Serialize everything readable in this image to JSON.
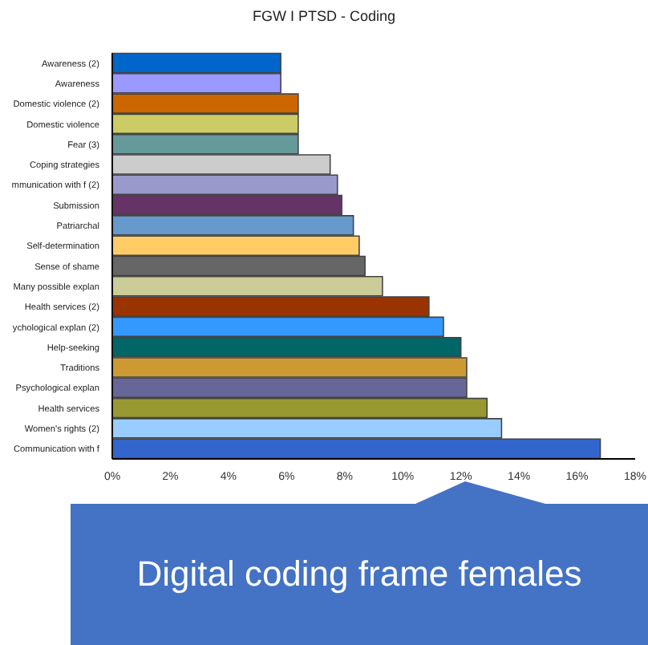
{
  "chart_data": {
    "type": "bar",
    "orientation": "horizontal",
    "title": "FGW I PTSD - Coding",
    "categories": [
      "Awareness (2)",
      "Awareness",
      "Domestic violence (2)",
      "Domestic violence",
      "Fear (3)",
      "Coping strategies",
      "mmunication with f (2)",
      "Submission",
      "Patriarchal",
      "Self-determination",
      "Sense of shame",
      "Many possible explan",
      "Health services (2)",
      "ychological explan (2)",
      "Help-seeking",
      "Traditions",
      "Psychological explan",
      "Health services",
      "Women's rights (2)",
      "Communication with f"
    ],
    "values": [
      5.8,
      5.8,
      6.4,
      6.4,
      6.4,
      7.5,
      7.75,
      7.9,
      8.3,
      8.5,
      8.7,
      9.3,
      10.9,
      11.4,
      12.0,
      12.2,
      12.2,
      12.9,
      13.4,
      16.8
    ],
    "colors": [
      "#0066cc",
      "#9999ff",
      "#cc6600",
      "#cccc66",
      "#669999",
      "#cccccc",
      "#9999cc",
      "#663366",
      "#6699cc",
      "#ffcc66",
      "#666666",
      "#cccc99",
      "#993300",
      "#3399ff",
      "#006666",
      "#cc9933",
      "#666699",
      "#999933",
      "#99ccff",
      "#3366cc"
    ],
    "xlim": [
      0,
      18
    ],
    "xticks": [
      {
        "value": 0,
        "label": "0%"
      },
      {
        "value": 2,
        "label": "2%"
      },
      {
        "value": 4,
        "label": "4%"
      },
      {
        "value": 6,
        "label": "6%"
      },
      {
        "value": 8,
        "label": "8%"
      },
      {
        "value": 10,
        "label": "10%"
      },
      {
        "value": 12,
        "label": "12%"
      },
      {
        "value": 14,
        "label": "14%"
      },
      {
        "value": 16,
        "label": "16%"
      },
      {
        "value": 18,
        "label": "18%"
      }
    ],
    "grid": false,
    "legend": false,
    "annotations": [
      "Digital coding frame females"
    ]
  }
}
